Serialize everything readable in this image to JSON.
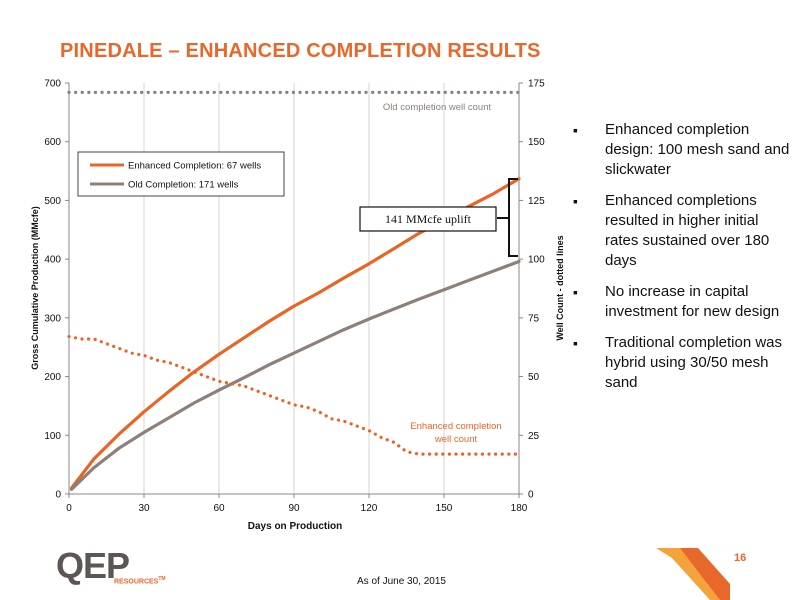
{
  "slide": {
    "title": "PINEDALE – ENHANCED COMPLETION RESULTS",
    "page_number": "16",
    "footnote": "As of June 30, 2015",
    "logo": {
      "main": "QEP",
      "sub": "RESOURCES",
      "tm": "TM"
    },
    "colors": {
      "title": "#e8672a",
      "orange": "#ea6424",
      "gray": "#8c8079",
      "dark": "#5c5654"
    }
  },
  "bullets": [
    "Enhanced completion design: 100 mesh sand and slickwater",
    "Enhanced completions resulted in higher initial rates sustained over 180 days",
    "No increase in capital investment for new design",
    "Traditional completion was hybrid using 30/50 mesh sand"
  ],
  "chart_data": {
    "type": "line",
    "xlabel": "Days on Production",
    "ylabel": "Gross Cumulative Production (MMcfe)",
    "y2label": "Well Count - dotted lines",
    "xlim": [
      0,
      180
    ],
    "ylim": [
      0,
      700
    ],
    "y2lim": [
      0,
      175
    ],
    "x_ticks": [
      0,
      30,
      60,
      90,
      120,
      150,
      180
    ],
    "y_ticks": [
      0,
      100,
      200,
      300,
      400,
      500,
      600,
      700
    ],
    "y2_ticks": [
      0,
      25,
      50,
      75,
      100,
      125,
      150,
      175
    ],
    "grid": "vertical",
    "legend_position": "upper-left",
    "series": [
      {
        "name": "Enhanced Completion: 67 wells",
        "axis": "left",
        "style": "solid",
        "color": "#ea6424",
        "x": [
          1,
          10,
          20,
          30,
          40,
          50,
          60,
          70,
          80,
          90,
          100,
          110,
          120,
          130,
          140,
          150,
          160,
          170,
          180
        ],
        "y": [
          10,
          60,
          102,
          140,
          175,
          208,
          238,
          266,
          294,
          320,
          343,
          368,
          392,
          418,
          444,
          466,
          490,
          512,
          537
        ]
      },
      {
        "name": "Old Completion: 171 wells",
        "axis": "left",
        "style": "solid",
        "color": "#8c8079",
        "x": [
          1,
          10,
          20,
          30,
          40,
          50,
          60,
          70,
          80,
          90,
          100,
          110,
          120,
          130,
          140,
          150,
          160,
          170,
          180
        ],
        "y": [
          8,
          45,
          78,
          105,
          130,
          155,
          177,
          198,
          220,
          240,
          260,
          280,
          298,
          315,
          332,
          348,
          364,
          380,
          396
        ]
      },
      {
        "name": "Enhanced completion well count",
        "axis": "right",
        "style": "dotted",
        "color": "#ea6424",
        "x": [
          0,
          5,
          10,
          15,
          20,
          25,
          30,
          35,
          40,
          45,
          50,
          55,
          60,
          65,
          70,
          75,
          80,
          85,
          90,
          95,
          100,
          105,
          110,
          115,
          120,
          125,
          130,
          135,
          140,
          150,
          160,
          170,
          180
        ],
        "y": [
          67,
          66,
          66,
          64,
          62,
          60,
          59,
          57,
          56,
          54,
          52,
          50,
          48,
          47,
          46,
          44,
          42,
          40,
          38,
          37,
          35,
          32,
          31,
          29,
          27,
          24,
          22,
          18,
          17,
          17,
          17,
          17,
          17
        ]
      },
      {
        "name": "Old completion well count",
        "axis": "right",
        "style": "dotted",
        "color": "#8c8079",
        "x": [
          0,
          180
        ],
        "y": [
          171,
          171
        ]
      }
    ],
    "annotations": {
      "old_count": "Old completion well count",
      "enh_count_line1": "Enhanced completion",
      "enh_count_line2": "well count",
      "uplift": "141 MMcfe uplift"
    }
  }
}
